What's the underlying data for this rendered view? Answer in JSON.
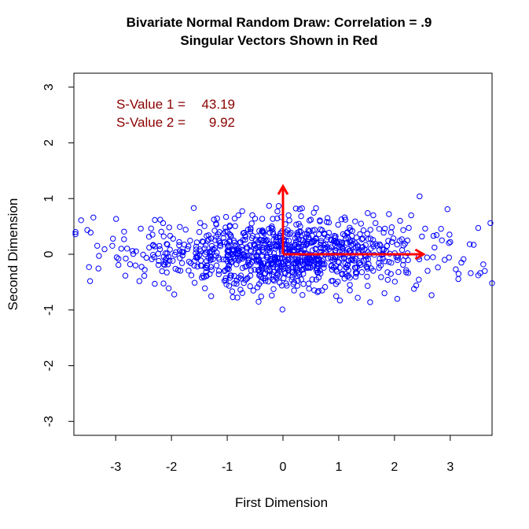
{
  "chart_data": {
    "type": "scatter",
    "title": "Bivariate Normal Random Draw: Correlation = .9",
    "subtitle": "Singular Vectors Shown in Red",
    "xlabel": "First Dimension",
    "ylabel": "Second Dimension",
    "xlim": [
      -3.75,
      3.75
    ],
    "ylim": [
      -3.25,
      3.25
    ],
    "xticks": [
      -3,
      -2,
      -1,
      0,
      1,
      2,
      3
    ],
    "yticks": [
      -3,
      -2,
      -1,
      0,
      1,
      2,
      3
    ],
    "grid": false,
    "annotations": [
      {
        "label": "S-Value 1 =",
        "value": "43.19"
      },
      {
        "label": "S-Value 2 =",
        "value": "9.92"
      }
    ],
    "vectors": [
      {
        "from": [
          0,
          0
        ],
        "to": [
          2.52,
          0
        ]
      },
      {
        "from": [
          0,
          0
        ],
        "to": [
          0,
          1.22
        ]
      }
    ],
    "colors": {
      "points": "#0000ff",
      "vectors": "#ff0000",
      "annotation": "#8b0000"
    },
    "series": [
      {
        "marker": "open-circle",
        "n": 1000,
        "x_sd": 1.17,
        "y_sd": 0.31,
        "points": [
          [
            -3.72,
            0.4
          ],
          [
            -3.72,
            0.36
          ],
          [
            -3.62,
            0.61
          ],
          [
            -3.4,
            0.66
          ],
          [
            -3.45,
            0.39
          ],
          [
            -3.48,
            -0.23
          ],
          [
            -3.3,
            -0.03
          ],
          [
            -3.2,
            0.09
          ],
          [
            -3.05,
            0.28
          ],
          [
            -2.95,
            -0.08
          ],
          [
            -2.9,
            0.1
          ],
          [
            -2.85,
            0.27
          ],
          [
            -2.7,
            0.06
          ],
          [
            -2.55,
            0.46
          ],
          [
            -2.48,
            -0.28
          ],
          [
            -2.4,
            0.12
          ],
          [
            -2.3,
            -0.53
          ],
          [
            -2.2,
            0.62
          ],
          [
            -2.15,
            0.56
          ],
          [
            -2.05,
            -0.61
          ],
          [
            -1.95,
            -0.72
          ],
          [
            -1.85,
            0.49
          ],
          [
            -1.6,
            0.83
          ],
          [
            -1.5,
            0.4
          ],
          [
            -1.4,
            -0.61
          ],
          [
            -1.2,
            0.55
          ],
          [
            -1.02,
            0.67
          ],
          [
            -0.9,
            -0.77
          ],
          [
            -0.8,
            0.7
          ],
          [
            -0.5,
            0.64
          ],
          [
            -0.25,
            0.87
          ],
          [
            -0.2,
            -0.74
          ],
          [
            -0.1,
            0.77
          ],
          [
            -0.01,
            -0.99
          ],
          [
            0.1,
            0.7
          ],
          [
            0.3,
            0.81
          ],
          [
            0.35,
            -0.73
          ],
          [
            0.5,
            0.62
          ],
          [
            0.62,
            -0.68
          ],
          [
            0.8,
            0.65
          ],
          [
            1.02,
            -0.83
          ],
          [
            1.12,
            0.62
          ],
          [
            1.2,
            -0.55
          ],
          [
            1.4,
            0.55
          ],
          [
            1.62,
            0.7
          ],
          [
            1.82,
            -0.7
          ],
          [
            1.9,
            0.72
          ],
          [
            2.05,
            -0.8
          ],
          [
            2.1,
            0.6
          ],
          [
            2.3,
            0.7
          ],
          [
            2.45,
            1.04
          ],
          [
            2.35,
            -0.62
          ],
          [
            2.55,
            0.46
          ],
          [
            2.7,
            0.33
          ],
          [
            2.85,
            0.25
          ],
          [
            2.9,
            -0.1
          ],
          [
            3.0,
            0.22
          ],
          [
            2.95,
            0.81
          ],
          [
            3.1,
            -0.27
          ],
          [
            3.15,
            -0.35
          ],
          [
            3.2,
            -0.15
          ],
          [
            3.35,
            0.18
          ],
          [
            3.42,
            0.17
          ],
          [
            3.62,
            -0.3
          ],
          [
            3.72,
            0.56
          ],
          [
            3.75,
            -0.52
          ]
        ]
      }
    ]
  }
}
